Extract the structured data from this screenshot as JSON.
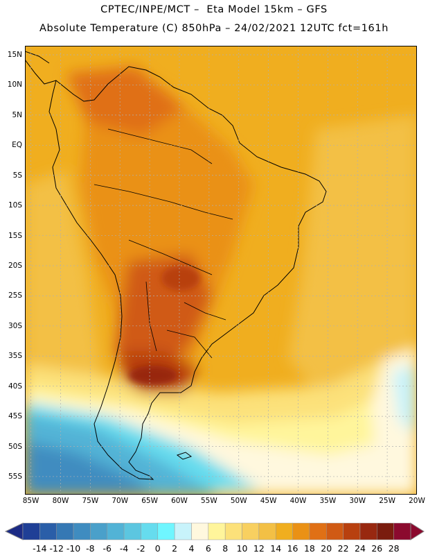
{
  "header": {
    "line1": "CPTEC/INPE/MCT –  Eta Model 15km – GFS",
    "line2": "Absolute Temperature (C) 850hPa – 24/02/2021 12UTC fct=161h"
  },
  "map": {
    "lat_labels": [
      "15N",
      "10N",
      "5N",
      "EQ",
      "5S",
      "10S",
      "15S",
      "20S",
      "25S",
      "30S",
      "35S",
      "40S",
      "45S",
      "50S",
      "55S"
    ],
    "lon_labels": [
      "85W",
      "80W",
      "75W",
      "70W",
      "65W",
      "60W",
      "55W",
      "50W",
      "45W",
      "40W",
      "35W",
      "30W",
      "25W",
      "20W"
    ],
    "lat_range": [
      -58,
      16.5
    ],
    "lon_range": [
      -86,
      -20
    ],
    "grid": true,
    "gridline_color": "#b0b0b0",
    "coastline_color": "#000000"
  },
  "colorbar": {
    "labels": [
      "-14",
      "-12",
      "-10",
      "-8",
      "-6",
      "-4",
      "-2",
      "0",
      "2",
      "4",
      "6",
      "8",
      "10",
      "12",
      "14",
      "16",
      "18",
      "20",
      "22",
      "24",
      "26",
      "28"
    ],
    "colors": [
      "#1f3f96",
      "#2a5ea8",
      "#3578b4",
      "#3f8cc0",
      "#4aa0ca",
      "#52b3d6",
      "#5cc6e0",
      "#66dcee",
      "#6ff6ff",
      "#c8f3fb",
      "#fff8de",
      "#fff59b",
      "#fce17a",
      "#f8d060",
      "#f3c045",
      "#f0ae1f",
      "#ea9115",
      "#e07015",
      "#d05a14",
      "#b8400f",
      "#982810",
      "#7a1c0e",
      "#8b0a2e"
    ],
    "under_color": "#1c2b85",
    "over_color": "#8b0a2e"
  }
}
